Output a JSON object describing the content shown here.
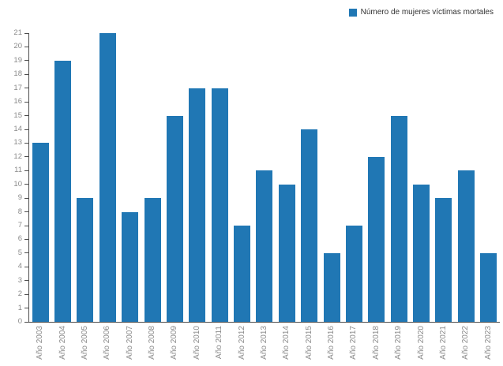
{
  "chart_data": {
    "type": "bar",
    "title": "",
    "xlabel": "",
    "ylabel": "",
    "legend": "Número de mujeres víctimas mortales",
    "legend_position": "top-right",
    "categories": [
      "Año 2003",
      "Año 2004",
      "Año 2005",
      "Año 2006",
      "Año 2007",
      "Año 2008",
      "Año 2009",
      "Año 2010",
      "Año 2011",
      "Año 2012",
      "Año 2013",
      "Año 2014",
      "Año 2015",
      "Año 2016",
      "Año 2017",
      "Año 2018",
      "Año 2019",
      "Año 2020",
      "Año 2021",
      "Año 2022",
      "Año 2023"
    ],
    "values": [
      13,
      19,
      9,
      21,
      8,
      9,
      15,
      17,
      17,
      7,
      11,
      10,
      14,
      5,
      7,
      12,
      15,
      10,
      9,
      11,
      5
    ],
    "ylim": [
      0,
      21
    ],
    "ytick_interval": 1,
    "grid": false,
    "colors": {
      "bar": "#2077b4",
      "axis": "#4d4d4d",
      "tick_text": "#8a8a8a",
      "legend_text": "#333333"
    }
  }
}
